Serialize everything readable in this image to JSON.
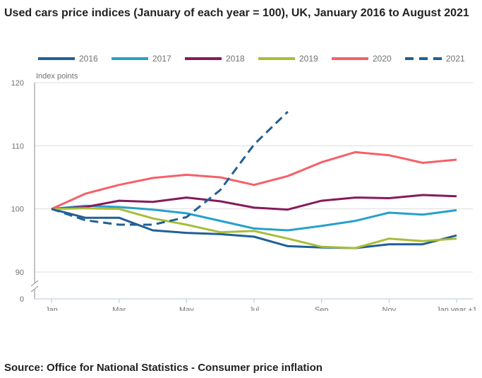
{
  "title": "Used cars price indices (January of each year = 100), UK, January 2016 to August 2021",
  "source": "Source: Office for National Statistics - Consumer price inflation",
  "chart_data": {
    "type": "line",
    "title": "Used cars price indices (January of each year = 100), UK, January 2016 to August 2021",
    "xlabel": "",
    "ylabel": "Index points",
    "x": [
      "Jan",
      "Feb",
      "Mar",
      "Apr",
      "May",
      "Jun",
      "Jul",
      "Aug",
      "Sep",
      "Oct",
      "Nov",
      "Dec",
      "Jan year +1"
    ],
    "x_tick_labels": [
      "Jan",
      "Mar",
      "May",
      "Jul",
      "Sep",
      "Nov",
      "Jan year +1"
    ],
    "y_ticks": [
      0,
      90,
      100,
      110,
      120
    ],
    "ylim": [
      90,
      120
    ],
    "y_axis_break": "between 0 and 90",
    "grid": true,
    "legend_position": "top",
    "series": [
      {
        "name": "2016",
        "color": "#206095",
        "dashed": false,
        "values": [
          100,
          98.6,
          98.6,
          96.6,
          96.2,
          96.0,
          95.6,
          94.1,
          93.9,
          93.8,
          94.4,
          94.4,
          95.8
        ]
      },
      {
        "name": "2017",
        "color": "#27A0CC",
        "dashed": false,
        "values": [
          100,
          100.5,
          100.3,
          99.9,
          99.3,
          98.1,
          96.9,
          96.6,
          97.3,
          98.1,
          99.4,
          99.1,
          99.8
        ]
      },
      {
        "name": "2018",
        "color": "#871A5B",
        "dashed": false,
        "values": [
          100,
          100.3,
          101.3,
          101.1,
          101.8,
          101.2,
          100.2,
          99.9,
          101.3,
          101.8,
          101.7,
          102.2,
          102.0
        ]
      },
      {
        "name": "2019",
        "color": "#A8BD3A",
        "dashed": false,
        "values": [
          100,
          100.1,
          100.0,
          98.5,
          97.5,
          96.3,
          96.5,
          95.3,
          94.0,
          93.8,
          95.3,
          94.9,
          95.3
        ]
      },
      {
        "name": "2020",
        "color": "#F66068",
        "dashed": false,
        "values": [
          100,
          102.4,
          103.8,
          104.9,
          105.4,
          105.0,
          103.8,
          105.2,
          107.4,
          109.0,
          108.5,
          107.3,
          107.8
        ]
      },
      {
        "name": "2021",
        "color": "#206095",
        "dashed": true,
        "values": [
          100,
          98.2,
          97.5,
          97.5,
          98.7,
          103.0,
          110.2,
          115.4
        ]
      }
    ]
  }
}
